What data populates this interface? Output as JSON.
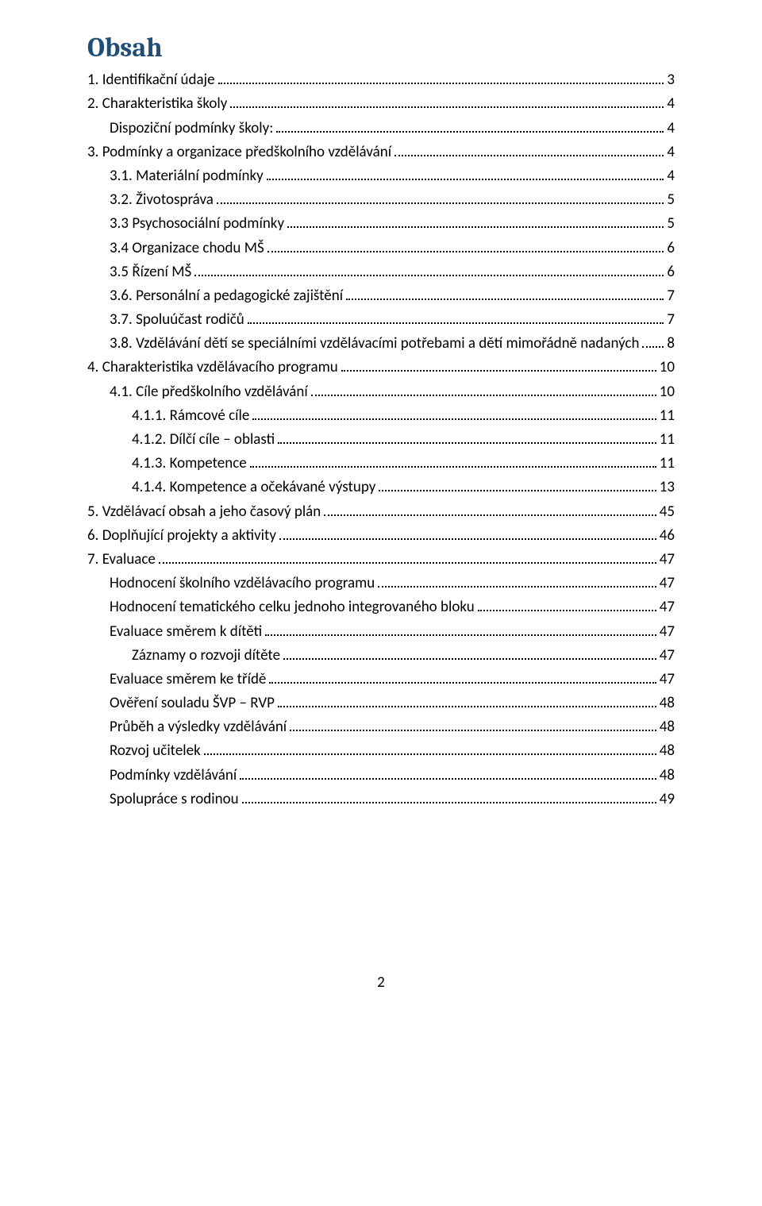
{
  "title": "Obsah",
  "footer_page": "2",
  "colors": {
    "title": "#1f4e79",
    "text": "#000000",
    "background": "#ffffff",
    "dots": "#000000"
  },
  "typography": {
    "title_fontsize_pt": 26,
    "body_fontsize_pt": 14,
    "title_weight": 700,
    "title_family": "Cambria",
    "body_family": "Calibri"
  },
  "toc": [
    {
      "indent": 0,
      "label": "1. Identifikační údaje",
      "page": "3"
    },
    {
      "indent": 0,
      "label": "2. Charakteristika školy",
      "page": "4"
    },
    {
      "indent": 1,
      "label": "Dispoziční podmínky školy:",
      "page": "4"
    },
    {
      "indent": 0,
      "label": "3. Podmínky a organizace předškolního vzdělávání",
      "page": "4"
    },
    {
      "indent": 1,
      "label": "3.1. Materiální podmínky",
      "page": "4"
    },
    {
      "indent": 1,
      "label": "3.2. Životospráva",
      "page": "5"
    },
    {
      "indent": 1,
      "label": "3.3 Psychosociální podmínky",
      "page": "5"
    },
    {
      "indent": 1,
      "label": "3.4 Organizace chodu MŠ",
      "page": "6"
    },
    {
      "indent": 1,
      "label": "3.5 Řízení MŠ",
      "page": "6"
    },
    {
      "indent": 1,
      "label": "3.6. Personální a pedagogické zajištění",
      "page": "7"
    },
    {
      "indent": 1,
      "label": "3.7. Spoluúčast rodičů",
      "page": "7"
    },
    {
      "indent": 1,
      "label": "3.8. Vzdělávání dětí se speciálními vzdělávacími potřebami a dětí mimořádně nadaných",
      "page": "8"
    },
    {
      "indent": 0,
      "label": "4. Charakteristika vzdělávacího programu",
      "page": "10"
    },
    {
      "indent": 1,
      "label": "4.1. Cíle předškolního vzdělávání",
      "page": "10"
    },
    {
      "indent": 2,
      "label": "4.1.1. Rámcové cíle",
      "page": "11"
    },
    {
      "indent": 2,
      "label": "4.1.2. Dílčí cíle – oblasti",
      "page": "11"
    },
    {
      "indent": 2,
      "label": "4.1.3. Kompetence",
      "page": "11"
    },
    {
      "indent": 2,
      "label": "4.1.4. Kompetence a očekávané výstupy",
      "page": "13"
    },
    {
      "indent": 0,
      "label": "5. Vzdělávací obsah a jeho časový plán",
      "page": "45"
    },
    {
      "indent": 0,
      "label": "6. Doplňující projekty a aktivity",
      "page": "46"
    },
    {
      "indent": 0,
      "label": "7. Evaluace",
      "page": "47"
    },
    {
      "indent": 1,
      "label": "Hodnocení školního vzdělávacího programu",
      "page": "47"
    },
    {
      "indent": 1,
      "label": "Hodnocení tematického celku jednoho integrovaného bloku",
      "page": "47"
    },
    {
      "indent": 1,
      "label": "Evaluace směrem k dítěti",
      "page": "47"
    },
    {
      "indent": 2,
      "label": "Záznamy o rozvoji dítěte",
      "page": "47"
    },
    {
      "indent": 1,
      "label": "Evaluace směrem ke třídě",
      "page": "47"
    },
    {
      "indent": 1,
      "label": "Ověření souladu ŠVP – RVP",
      "page": "48"
    },
    {
      "indent": 1,
      "label": "Průběh a výsledky vzdělávání",
      "page": "48"
    },
    {
      "indent": 1,
      "label": "Rozvoj učitelek",
      "page": "48"
    },
    {
      "indent": 1,
      "label": "Podmínky vzdělávání",
      "page": "48"
    },
    {
      "indent": 1,
      "label": "Spolupráce s rodinou",
      "page": "49"
    }
  ]
}
